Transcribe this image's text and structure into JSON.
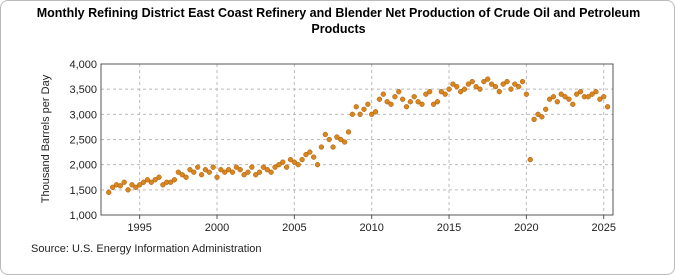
{
  "chart_data": {
    "type": "scatter",
    "title": "Monthly Refining District East Coast Refinery and Blender Net Production of Crude Oil and Petroleum Products",
    "ylabel": "Thousand Barrels per Day",
    "source": "Source: U.S. Energy Information Administration",
    "color": "#d9861c",
    "grid": true,
    "xlim": [
      1992.5,
      2025.6
    ],
    "xticks": [
      1995,
      2000,
      2005,
      2010,
      2015,
      2020,
      2025
    ],
    "ylim": [
      1000,
      4000
    ],
    "yticks": [
      {
        "value": 1000,
        "label": "1,000"
      },
      {
        "value": 1500,
        "label": "1,500"
      },
      {
        "value": 2000,
        "label": "2,000"
      },
      {
        "value": 2500,
        "label": "2,500"
      },
      {
        "value": 3000,
        "label": "3,000"
      },
      {
        "value": 3500,
        "label": "3,500"
      },
      {
        "value": 4000,
        "label": "4,000"
      }
    ],
    "x": [
      1993,
      1993.25,
      1993.5,
      1993.75,
      1994,
      1994.25,
      1994.5,
      1994.75,
      1995,
      1995.25,
      1995.5,
      1995.75,
      1996,
      1996.25,
      1996.5,
      1996.75,
      1997,
      1997.25,
      1997.5,
      1997.75,
      1998,
      1998.25,
      1998.5,
      1998.75,
      1999,
      1999.25,
      1999.5,
      1999.75,
      2000,
      2000.25,
      2000.5,
      2000.75,
      2001,
      2001.25,
      2001.5,
      2001.75,
      2002,
      2002.25,
      2002.5,
      2002.75,
      2003,
      2003.25,
      2003.5,
      2003.75,
      2004,
      2004.25,
      2004.5,
      2004.75,
      2005,
      2005.25,
      2005.5,
      2005.75,
      2006,
      2006.25,
      2006.5,
      2006.75,
      2007,
      2007.25,
      2007.5,
      2007.75,
      2008,
      2008.25,
      2008.5,
      2008.75,
      2009,
      2009.25,
      2009.5,
      2009.75,
      2010,
      2010.25,
      2010.5,
      2010.75,
      2011,
      2011.25,
      2011.5,
      2011.75,
      2012,
      2012.25,
      2012.5,
      2012.75,
      2013,
      2013.25,
      2013.5,
      2013.75,
      2014,
      2014.25,
      2014.5,
      2014.75,
      2015,
      2015.25,
      2015.5,
      2015.75,
      2016,
      2016.25,
      2016.5,
      2016.75,
      2017,
      2017.25,
      2017.5,
      2017.75,
      2018,
      2018.25,
      2018.5,
      2018.75,
      2019,
      2019.25,
      2019.5,
      2019.75,
      2020,
      2020.25,
      2020.5,
      2020.75,
      2021,
      2021.25,
      2021.5,
      2021.75,
      2022,
      2022.25,
      2022.5,
      2022.75,
      2023,
      2023.25,
      2023.5,
      2023.75,
      2024,
      2024.25,
      2024.5,
      2024.75,
      2025,
      2025.25
    ],
    "values": [
      1450,
      1550,
      1600,
      1580,
      1650,
      1500,
      1600,
      1550,
      1600,
      1650,
      1700,
      1650,
      1700,
      1750,
      1600,
      1650,
      1650,
      1700,
      1850,
      1800,
      1750,
      1900,
      1850,
      1950,
      1800,
      1900,
      1850,
      1950,
      1750,
      1900,
      1850,
      1900,
      1850,
      1950,
      1900,
      1800,
      1850,
      1950,
      1800,
      1850,
      1950,
      1900,
      1850,
      1950,
      2000,
      2050,
      1950,
      2100,
      2050,
      2000,
      2100,
      2200,
      2250,
      2150,
      2000,
      2350,
      2600,
      2500,
      2350,
      2550,
      2500,
      2450,
      2650,
      3000,
      3150,
      3000,
      3100,
      3200,
      3000,
      3050,
      3300,
      3400,
      3250,
      3200,
      3350,
      3450,
      3300,
      3150,
      3250,
      3350,
      3250,
      3200,
      3400,
      3450,
      3200,
      3250,
      3450,
      3400,
      3500,
      3600,
      3550,
      3450,
      3500,
      3600,
      3650,
      3550,
      3500,
      3650,
      3700,
      3600,
      3550,
      3450,
      3600,
      3650,
      3500,
      3600,
      3550,
      3650,
      3400,
      2100,
      2900,
      3000,
      2950,
      3100,
      3300,
      3350,
      3250,
      3400,
      3350,
      3300,
      3200,
      3400,
      3450,
      3350,
      3350,
      3400,
      3450,
      3300,
      3350,
      3150
    ]
  }
}
